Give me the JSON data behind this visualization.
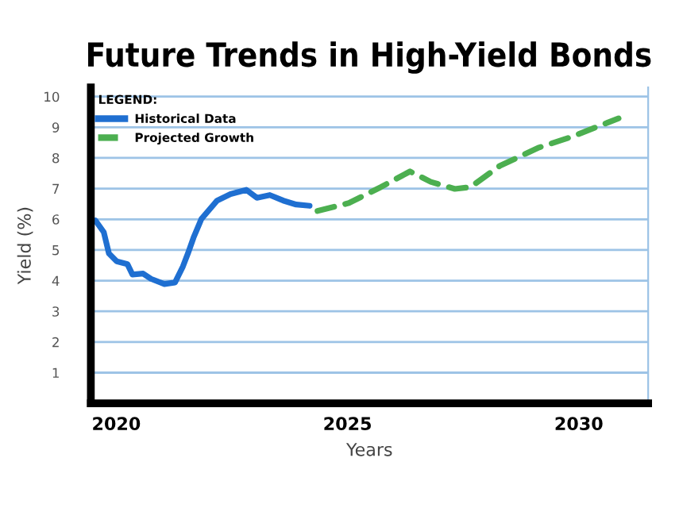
{
  "chart_data": {
    "type": "line",
    "title": "Future Trends in High-Yield Bonds",
    "xlabel": "Years",
    "ylabel": "Yield (%)",
    "legend_title": "LEGEND:",
    "xlim": [
      2019.45,
      2031.5
    ],
    "xticks": [
      2020,
      2025,
      2030
    ],
    "ylim": [
      0,
      10.3
    ],
    "yticks": [
      1,
      2,
      3,
      4,
      5,
      6,
      7,
      8,
      9,
      10
    ],
    "grid": "y",
    "legend": "top left",
    "marker": "none",
    "series": [
      {
        "name": "Historical Data",
        "color": "#1f6fd1",
        "line_style": "solid",
        "x": [
          2019.55,
          2019.73,
          2019.84,
          2020.01,
          2020.24,
          2020.35,
          2020.58,
          2020.75,
          2021.04,
          2021.27,
          2021.44,
          2021.55,
          2021.67,
          2021.84,
          2022.18,
          2022.47,
          2022.81,
          2023.04,
          2023.32,
          2023.61,
          2023.89,
          2024.18
        ],
        "values": [
          5.96,
          5.58,
          4.89,
          4.63,
          4.54,
          4.2,
          4.23,
          4.06,
          3.89,
          3.94,
          4.46,
          4.89,
          5.4,
          6.01,
          6.61,
          6.82,
          6.96,
          6.7,
          6.79,
          6.61,
          6.48,
          6.44
        ]
      },
      {
        "name": "Projected Growth",
        "color": "#4caf50",
        "line_style": "dashed",
        "x": [
          2024.35,
          2025.03,
          2025.72,
          2026.35,
          2026.8,
          2027.32,
          2027.66,
          2028.29,
          2029.14,
          2029.83,
          2030.86
        ],
        "values": [
          6.27,
          6.53,
          7.05,
          7.56,
          7.22,
          6.99,
          7.05,
          7.74,
          8.34,
          8.68,
          9.29
        ]
      }
    ]
  }
}
